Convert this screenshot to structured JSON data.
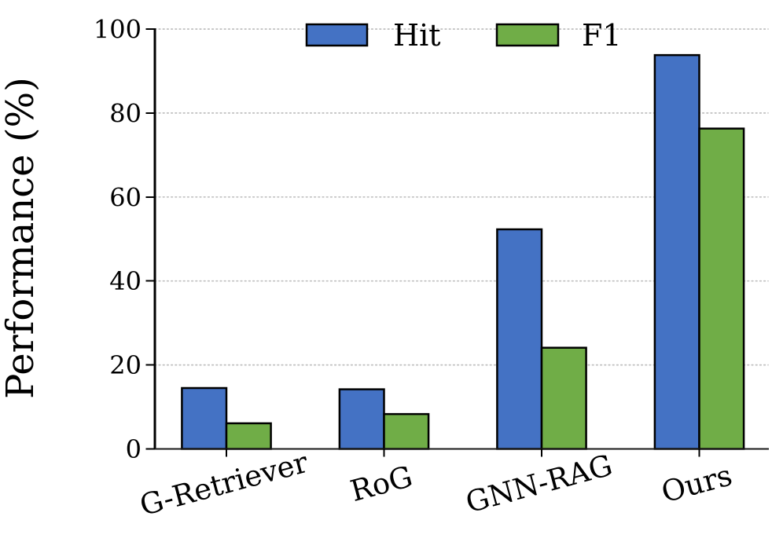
{
  "chart_data": {
    "type": "bar",
    "title": "",
    "xlabel": "",
    "ylabel": "Performance (%)",
    "categories": [
      "G-Retriever",
      "RoG",
      "GNN-RAG",
      "Ours"
    ],
    "series": [
      {
        "name": "Hit",
        "color": "#4472C4",
        "values": [
          14.5,
          14.2,
          52.3,
          93.8
        ]
      },
      {
        "name": "F1",
        "color": "#70AD47",
        "values": [
          6.1,
          8.3,
          24.1,
          76.3
        ]
      }
    ],
    "ylim": [
      0,
      100
    ],
    "yticks": [
      0,
      20,
      40,
      60,
      80,
      100
    ],
    "grid": "horizontal dotted",
    "gridline_color": "#bfbfbf",
    "bar_edge_color": "#000000",
    "axis_color": "#000000",
    "legend_position": "top center",
    "x_tick_label_rotation_deg": 15
  }
}
